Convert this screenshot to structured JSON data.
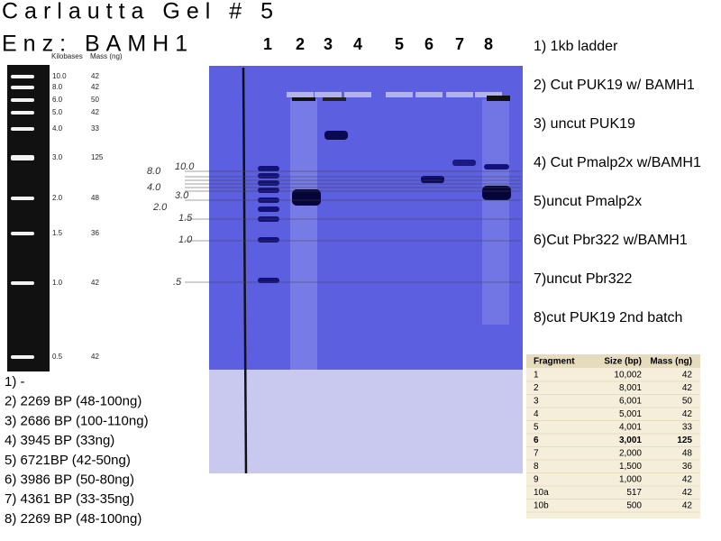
{
  "header": {
    "title": "Carlautta Gel # 5",
    "enzyme": "Enz: BAMH1"
  },
  "ladder": {
    "kilobases_label": "Kilobases",
    "mass_label": "Mass (ng)",
    "bands": [
      {
        "size": "10.0",
        "mass": "42"
      },
      {
        "size": "8.0",
        "mass": "42"
      },
      {
        "size": "6.0",
        "mass": "50"
      },
      {
        "size": "5.0",
        "mass": "42"
      },
      {
        "size": "4.0",
        "mass": "33"
      },
      {
        "size": "3.0",
        "mass": "125"
      },
      {
        "size": "2.0",
        "mass": "48"
      },
      {
        "size": "1.5",
        "mass": "36"
      },
      {
        "size": "1.0",
        "mass": "42"
      },
      {
        "size": "0.5",
        "mass": "42"
      }
    ]
  },
  "gel": {
    "lane_numbers": [
      "1",
      "2",
      "3",
      "4",
      "5",
      "6",
      "7",
      "8"
    ],
    "marks": [
      "8.0",
      "10.0",
      "4.0",
      "3.0",
      "2.0",
      "1.5",
      "1.0",
      ".5"
    ]
  },
  "lanes": [
    "1) 1kb ladder",
    "2) Cut PUK19 w/ BAMH1",
    "3) uncut PUK19",
    "4) Cut Pmalp2x w/BAMH1",
    "5)uncut Pmalp2x",
    "6)Cut Pbr322 w/BAMH1",
    "7)uncut Pbr322",
    "8)cut PUK19 2nd batch"
  ],
  "results": [
    "1) -",
    "2) 2269 BP (48-100ng)",
    "3) 2686 BP (100-110ng)",
    "4) 3945 BP (33ng)",
    "5) 6721BP (42-50ng)",
    "6) 3986 BP (50-80ng)",
    "7) 4361 BP (33-35ng)",
    "8) 2269 BP (48-100ng)"
  ],
  "table": {
    "columns": [
      "Fragment",
      "Size (bp)",
      "Mass (ng)"
    ],
    "rows": [
      [
        "1",
        "10,002",
        "42"
      ],
      [
        "2",
        "8,001",
        "42"
      ],
      [
        "3",
        "6,001",
        "50"
      ],
      [
        "4",
        "5,001",
        "42"
      ],
      [
        "5",
        "4,001",
        "33"
      ],
      [
        "6",
        "3,001",
        "125"
      ],
      [
        "7",
        "2,000",
        "48"
      ],
      [
        "8",
        "1,500",
        "36"
      ],
      [
        "9",
        "1,000",
        "42"
      ],
      [
        "10a",
        "517",
        "42"
      ],
      [
        "10b",
        "500",
        "42"
      ]
    ]
  }
}
